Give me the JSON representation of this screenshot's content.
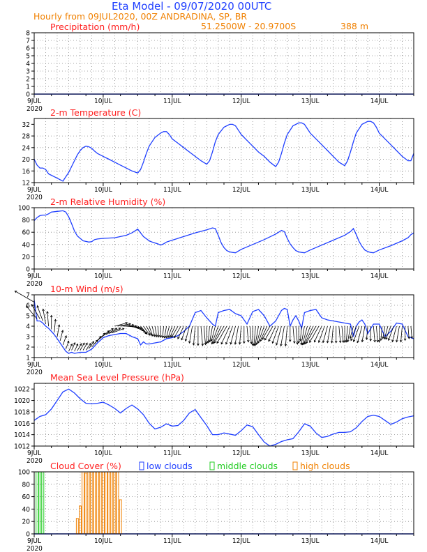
{
  "header": {
    "title": "Eta Model - 09/07/2020 00UTC",
    "hourly": "Hourly from 09JUL2020, 00Z  ANDRADINA, SP, BR",
    "location": "51.2500W - 20.9700S",
    "elevation": "388  m"
  },
  "colors": {
    "title": "#1f3fff",
    "subtitle": "#f08000",
    "panel_title": "#ff2020",
    "series": "#1f3fff",
    "low_clouds": "#1f3fff",
    "middle_clouds": "#22cc22",
    "high_clouds": "#f08000"
  },
  "x_axis": {
    "ticks": [
      {
        "hour": 0,
        "label": "9JUL"
      },
      {
        "hour": 24,
        "label": "10JUL"
      },
      {
        "hour": 48,
        "label": "11JUL"
      },
      {
        "hour": 72,
        "label": "12JUL"
      },
      {
        "hour": 96,
        "label": "13JUL"
      },
      {
        "hour": 120,
        "label": "14JUL"
      }
    ],
    "year_label": "2020",
    "xlim": [
      0,
      132
    ]
  },
  "chart_data": [
    {
      "id": "precip",
      "type": "bar",
      "title": "Precipitation (mm/h)",
      "ylim": [
        0,
        8
      ],
      "yticks": [
        0,
        1,
        2,
        3,
        4,
        5,
        6,
        7,
        8
      ],
      "x": [
        0,
        132
      ],
      "values": [
        0,
        0
      ]
    },
    {
      "id": "temp",
      "type": "line",
      "title": "2-m Temperature (C)",
      "ylim": [
        12,
        34
      ],
      "yticks": [
        12,
        16,
        20,
        24,
        28,
        32
      ],
      "x": [
        0,
        1,
        2,
        3,
        4,
        5,
        6,
        7,
        8,
        9,
        10,
        11,
        12,
        13,
        14,
        15,
        16,
        17,
        18,
        19,
        20,
        21,
        22,
        23,
        24,
        26,
        28,
        30,
        32,
        34,
        36,
        37,
        38,
        39,
        40,
        42,
        44,
        45,
        46,
        47,
        48,
        50,
        52,
        54,
        56,
        58,
        60,
        61,
        62,
        63,
        64,
        66,
        68,
        69,
        70,
        71,
        72,
        74,
        76,
        78,
        80,
        82,
        84,
        85,
        86,
        87,
        88,
        90,
        92,
        93,
        94,
        95,
        96,
        98,
        100,
        102,
        104,
        106,
        108,
        109,
        110,
        111,
        112,
        114,
        116,
        117,
        118,
        119,
        120,
        122,
        124,
        126,
        128,
        130,
        131,
        132
      ],
      "values": [
        20,
        18,
        17,
        17,
        16.5,
        15,
        14.5,
        14,
        13.5,
        13,
        12.5,
        14,
        15.5,
        17.5,
        19.5,
        21.5,
        23,
        24,
        24.5,
        24.3,
        23.8,
        22.8,
        22,
        21.5,
        21,
        20,
        19,
        18,
        17,
        16,
        15.3,
        16.5,
        19,
        22,
        24.5,
        27.5,
        29,
        29.5,
        29.5,
        28.5,
        27,
        25.5,
        24,
        22.5,
        21,
        19.5,
        18.3,
        19.5,
        22.5,
        26,
        28.5,
        31,
        32,
        32,
        31.5,
        30,
        28.5,
        26.5,
        24.5,
        22.5,
        21,
        19,
        17.5,
        19,
        22,
        25.5,
        28.5,
        31.5,
        32.5,
        32.5,
        32,
        30.5,
        29,
        27,
        25,
        23,
        21,
        19,
        17.8,
        19.5,
        22.5,
        26,
        29,
        32,
        33,
        33,
        32.5,
        31,
        29,
        27,
        25,
        23,
        21,
        19.5,
        19.5,
        22
      ]
    },
    {
      "id": "rh",
      "type": "line",
      "title": "2-m Relative Humidity (%)",
      "ylim": [
        0,
        100
      ],
      "yticks": [
        0,
        20,
        40,
        60,
        80,
        100
      ],
      "x": [
        0,
        1,
        2,
        3,
        4,
        5,
        6,
        8,
        10,
        11,
        12,
        13,
        14,
        15,
        16,
        17,
        18,
        19,
        20,
        21,
        22,
        24,
        28,
        32,
        34,
        36,
        38,
        40,
        41,
        42,
        43,
        44,
        45,
        46,
        48,
        52,
        56,
        60,
        62,
        63,
        64,
        65,
        66,
        67,
        68,
        69,
        70,
        72,
        76,
        80,
        84,
        86,
        87,
        88,
        89,
        90,
        91,
        92,
        93,
        94,
        96,
        100,
        104,
        108,
        110,
        111,
        112,
        113,
        114,
        115,
        116,
        117,
        118,
        120,
        124,
        128,
        130,
        131,
        132
      ],
      "values": [
        79,
        84,
        87,
        88,
        88,
        90,
        93,
        94,
        95,
        93,
        85,
        74,
        62,
        54,
        50,
        46,
        45,
        44,
        44.5,
        48,
        49,
        50,
        51,
        55,
        59,
        65,
        53,
        46,
        44,
        42.5,
        41,
        39,
        41,
        44,
        47,
        53,
        59,
        64,
        67,
        66,
        55,
        43,
        35,
        30,
        28,
        27,
        26.5,
        32,
        40,
        48,
        57,
        63,
        61,
        50,
        41,
        35,
        30,
        28,
        27,
        26.5,
        31,
        39,
        47,
        55,
        61,
        66,
        56,
        45,
        37,
        31,
        28.5,
        27,
        26.5,
        31,
        38,
        46,
        51,
        56,
        59
      ]
    },
    {
      "id": "wind",
      "type": "line",
      "title": "10-m Wind (m/s)",
      "ylim": [
        1,
        7
      ],
      "yticks": [
        1,
        2,
        3,
        4,
        5,
        6,
        7
      ],
      "x": [
        0,
        1,
        2,
        3,
        4,
        5,
        6,
        7,
        8,
        9,
        10,
        11,
        12,
        13,
        14,
        16,
        18,
        20,
        22,
        24,
        26,
        28,
        30,
        32,
        34,
        36,
        37,
        38,
        39,
        40,
        42,
        44,
        46,
        48,
        50,
        52,
        54,
        56,
        58,
        60,
        62,
        63,
        64,
        66,
        68,
        70,
        72,
        74,
        76,
        78,
        80,
        82,
        84,
        86,
        87,
        88,
        89,
        90,
        91,
        92,
        93,
        94,
        96,
        98,
        100,
        102,
        104,
        106,
        108,
        110,
        111,
        112,
        113,
        114,
        115,
        116,
        118,
        120,
        122,
        124,
        126,
        128,
        130,
        132
      ],
      "values": [
        6.5,
        4.5,
        4.5,
        4.3,
        4.0,
        3.8,
        3.5,
        3.2,
        2.8,
        2.4,
        2.0,
        1.6,
        1.4,
        1.5,
        1.4,
        1.5,
        1.5,
        1.8,
        2.4,
        2.9,
        3.1,
        3.2,
        3.3,
        3.3,
        3.0,
        2.8,
        2.2,
        2.5,
        2.3,
        2.3,
        2.4,
        2.5,
        2.8,
        2.9,
        3.1,
        3.5,
        4.0,
        5.3,
        5.5,
        4.8,
        4.2,
        4.0,
        5.3,
        5.5,
        5.6,
        5.2,
        5.0,
        4.2,
        5.4,
        5.6,
        5.0,
        4.0,
        4.5,
        5.5,
        5.7,
        5.6,
        4.0,
        4.6,
        5.0,
        4.5,
        3.8,
        5.3,
        5.5,
        5.6,
        4.8,
        4.6,
        4.5,
        4.4,
        4.3,
        4.2,
        3.0,
        4.0,
        4.4,
        4.6,
        4.2,
        3.3,
        4.2,
        4.2,
        3.0,
        3.5,
        4.3,
        4.2,
        3.0,
        2.8
      ]
    },
    {
      "id": "mslp",
      "type": "line",
      "title": "Mean Sea Level Pressure (hPa)",
      "ylim": [
        1012,
        1023
      ],
      "yticks": [
        1012,
        1014,
        1016,
        1018,
        1020,
        1022
      ],
      "x": [
        0,
        2,
        4,
        6,
        8,
        10,
        12,
        14,
        16,
        18,
        20,
        22,
        24,
        26,
        28,
        30,
        32,
        34,
        36,
        38,
        40,
        42,
        44,
        46,
        48,
        50,
        52,
        54,
        56,
        58,
        60,
        62,
        64,
        66,
        68,
        70,
        72,
        74,
        76,
        78,
        80,
        82,
        84,
        86,
        88,
        90,
        92,
        94,
        96,
        98,
        100,
        102,
        104,
        106,
        108,
        110,
        112,
        114,
        116,
        118,
        120,
        122,
        124,
        126,
        128,
        130,
        132
      ],
      "values": [
        1016.5,
        1017.2,
        1017.5,
        1018.5,
        1020,
        1021.5,
        1022,
        1021.3,
        1020.3,
        1019.5,
        1019.4,
        1019.5,
        1019.7,
        1019.2,
        1018.6,
        1017.8,
        1018.6,
        1019.2,
        1018.5,
        1017.5,
        1016,
        1015,
        1015.3,
        1015.9,
        1015.5,
        1015.6,
        1016.5,
        1017.8,
        1018.4,
        1017,
        1015.6,
        1014,
        1014,
        1014.3,
        1014.1,
        1013.9,
        1014.7,
        1015.7,
        1015.4,
        1014,
        1012.7,
        1012,
        1012.3,
        1012.8,
        1013.1,
        1013.3,
        1014.5,
        1015.9,
        1015.5,
        1014.3,
        1013.5,
        1013.7,
        1014.1,
        1014.4,
        1014.4,
        1014.5,
        1015.2,
        1016.3,
        1017.2,
        1017.4,
        1017.2,
        1016.5,
        1015.8,
        1016.2,
        1016.8,
        1017.1,
        1017.3
      ]
    },
    {
      "id": "cloud",
      "type": "bar",
      "title": "Cloud Cover (%)",
      "ylim": [
        0,
        100
      ],
      "yticks": [
        0,
        20,
        40,
        60,
        80,
        100
      ],
      "legend": [
        "low clouds",
        "middle clouds",
        "high clouds"
      ],
      "series": [
        {
          "name": "low clouds",
          "x": [],
          "values": []
        },
        {
          "name": "middle clouds",
          "x": [
            1,
            2,
            3
          ],
          "values": [
            100,
            100,
            100
          ]
        },
        {
          "name": "high clouds",
          "x": [
            15,
            16,
            17,
            18,
            19,
            20,
            21,
            22,
            23,
            24,
            25,
            26,
            27,
            28,
            29,
            30
          ],
          "values": [
            25,
            45,
            100,
            98,
            100,
            100,
            100,
            100,
            100,
            100,
            100,
            100,
            100,
            100,
            100,
            55
          ]
        }
      ]
    }
  ],
  "wind_barbs": {
    "hours": [
      0,
      1,
      2,
      3,
      4,
      5,
      6,
      7,
      8,
      9,
      10,
      11,
      12,
      13,
      14,
      15,
      16,
      17,
      18,
      19,
      20,
      21,
      22,
      23,
      24,
      25,
      26,
      27,
      28,
      29,
      30,
      31,
      32,
      33,
      34,
      35,
      36,
      37,
      38,
      39,
      40,
      41,
      42,
      43,
      44,
      45,
      46,
      47,
      48,
      49,
      50,
      51,
      52,
      53,
      54,
      55,
      56,
      57,
      58,
      59,
      60,
      61,
      62,
      63,
      64,
      65,
      66,
      67,
      68,
      69,
      70,
      71,
      72,
      73,
      74,
      75,
      76,
      77,
      78,
      79,
      80,
      81,
      82,
      83,
      84,
      85,
      86,
      87,
      88,
      89,
      90,
      91,
      92,
      93,
      94,
      95,
      96,
      97,
      98,
      99,
      100,
      101,
      102,
      103,
      104,
      105,
      106,
      107,
      108,
      109,
      110,
      111,
      112,
      113,
      114,
      115,
      116,
      117,
      118,
      119,
      120,
      121,
      122,
      123,
      124,
      125,
      126,
      127,
      128,
      129,
      130,
      131
    ],
    "direction_to_deg": [
      300,
      320,
      330,
      340,
      350,
      355,
      0,
      5,
      10,
      15,
      20,
      20,
      25,
      25,
      25,
      30,
      30,
      30,
      35,
      35,
      40,
      40,
      45,
      50,
      55,
      60,
      65,
      70,
      75,
      80,
      85,
      90,
      95,
      100,
      110,
      120,
      130,
      140,
      145,
      150,
      160,
      165,
      170,
      175,
      180,
      185,
      190,
      195,
      200,
      205,
      210,
      210,
      205,
      200,
      195,
      190,
      185,
      180,
      175,
      175,
      180,
      185,
      190,
      195,
      200,
      205,
      210,
      210,
      205,
      200,
      195,
      190,
      185,
      180,
      175,
      175,
      180,
      185,
      190,
      195,
      200,
      205,
      210,
      210,
      205,
      200,
      195,
      190,
      185,
      180,
      175,
      175,
      180,
      185,
      190,
      195,
      200,
      205,
      210,
      210,
      205,
      200,
      195,
      190,
      185,
      180,
      175,
      175,
      180,
      185,
      190,
      195,
      200,
      200,
      195,
      190,
      185,
      180,
      175,
      175,
      180,
      185,
      190,
      195,
      200,
      200,
      195,
      190,
      185,
      180,
      175,
      175
    ]
  }
}
